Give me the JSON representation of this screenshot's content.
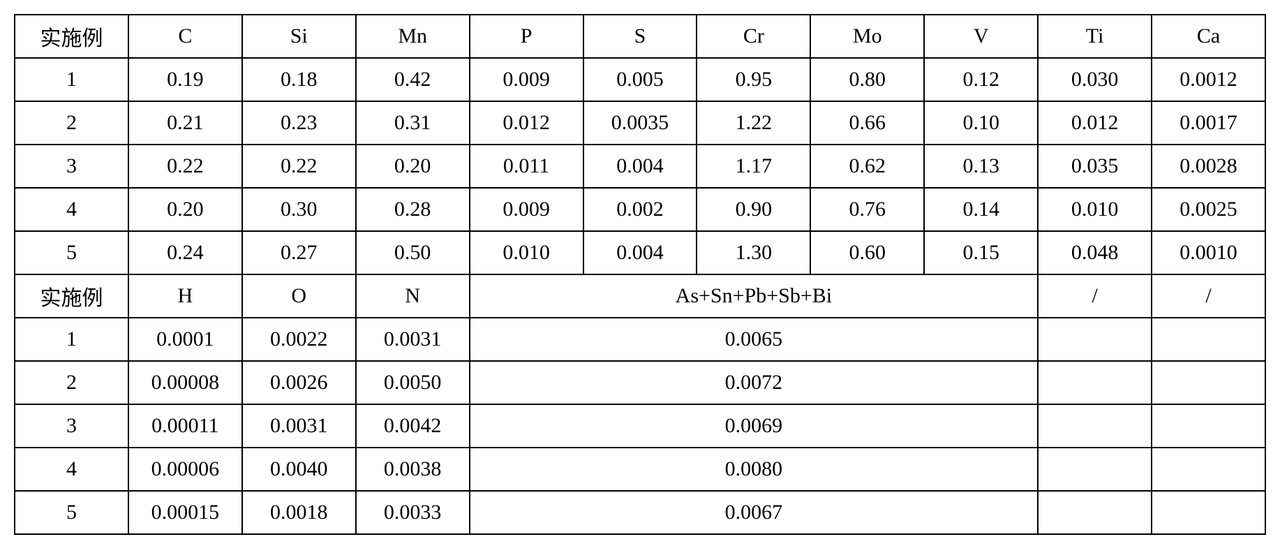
{
  "table": {
    "type": "table",
    "background_color": "#ffffff",
    "border_color": "#000000",
    "border_width": 2,
    "font_family": "Times New Roman",
    "font_size": 30,
    "text_color": "#000000",
    "section1": {
      "header_label": "实施例",
      "columns": [
        "C",
        "Si",
        "Mn",
        "P",
        "S",
        "Cr",
        "Mo",
        "V",
        "Ti",
        "Ca"
      ],
      "rows": [
        {
          "id": "1",
          "values": [
            "0.19",
            "0.18",
            "0.42",
            "0.009",
            "0.005",
            "0.95",
            "0.80",
            "0.12",
            "0.030",
            "0.0012"
          ]
        },
        {
          "id": "2",
          "values": [
            "0.21",
            "0.23",
            "0.31",
            "0.012",
            "0.0035",
            "1.22",
            "0.66",
            "0.10",
            "0.012",
            "0.0017"
          ]
        },
        {
          "id": "3",
          "values": [
            "0.22",
            "0.22",
            "0.20",
            "0.011",
            "0.004",
            "1.17",
            "0.62",
            "0.13",
            "0.035",
            "0.0028"
          ]
        },
        {
          "id": "4",
          "values": [
            "0.20",
            "0.30",
            "0.28",
            "0.009",
            "0.002",
            "0.90",
            "0.76",
            "0.14",
            "0.010",
            "0.0025"
          ]
        },
        {
          "id": "5",
          "values": [
            "0.24",
            "0.27",
            "0.50",
            "0.010",
            "0.004",
            "1.30",
            "0.60",
            "0.15",
            "0.048",
            "0.0010"
          ]
        }
      ]
    },
    "section2": {
      "header_label": "实施例",
      "columns_single": [
        "H",
        "O",
        "N"
      ],
      "merged_column": "As+Sn+Pb+Sb+Bi",
      "trailing_columns": [
        "/",
        "/"
      ],
      "rows": [
        {
          "id": "1",
          "single_values": [
            "0.0001",
            "0.0022",
            "0.0031"
          ],
          "merged_value": "0.0065",
          "trailing": [
            "",
            ""
          ]
        },
        {
          "id": "2",
          "single_values": [
            "0.00008",
            "0.0026",
            "0.0050"
          ],
          "merged_value": "0.0072",
          "trailing": [
            "",
            ""
          ]
        },
        {
          "id": "3",
          "single_values": [
            "0.00011",
            "0.0031",
            "0.0042"
          ],
          "merged_value": "0.0069",
          "trailing": [
            "",
            ""
          ]
        },
        {
          "id": "4",
          "single_values": [
            "0.00006",
            "0.0040",
            "0.0038"
          ],
          "merged_value": "0.0080",
          "trailing": [
            "",
            ""
          ]
        },
        {
          "id": "5",
          "single_values": [
            "0.00015",
            "0.0018",
            "0.0033"
          ],
          "merged_value": "0.0067",
          "trailing": [
            "",
            ""
          ]
        }
      ]
    }
  }
}
